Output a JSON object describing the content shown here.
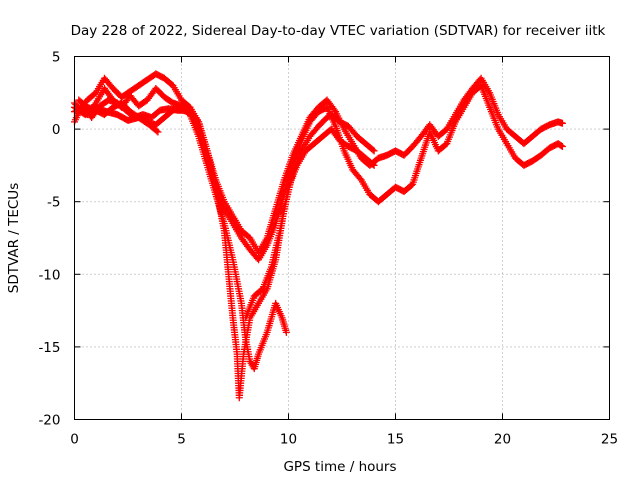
{
  "chart_data": {
    "type": "scatter",
    "title": "Day 228 of 2022, Sidereal Day-to-day VTEC variation (SDTVAR) for receiver iitk",
    "xlabel": "GPS time / hours",
    "ylabel": "SDTVAR / TECUs",
    "xlim": [
      0,
      25
    ],
    "ylim": [
      -20,
      5
    ],
    "x_ticks": [
      0,
      5,
      10,
      15,
      20,
      25
    ],
    "y_ticks": [
      5,
      0,
      -5,
      -10,
      -15,
      -20
    ],
    "grid": true,
    "legend": "none",
    "marker": "+",
    "color": "#ff0000",
    "series": [
      {
        "x": [
          0.0,
          0.3,
          0.6,
          1.0,
          1.4,
          1.8,
          2.2,
          2.6,
          3.0,
          3.4,
          3.8,
          4.2,
          4.6,
          5.0,
          5.4,
          5.8,
          6.2,
          6.6,
          7.0,
          7.4,
          7.8,
          8.2,
          8.6,
          9.0,
          9.4,
          9.8,
          10.2,
          10.6,
          11.0,
          11.4,
          11.8,
          12.2,
          12.6,
          13.0,
          13.4,
          13.8,
          14.2,
          14.6,
          15.0,
          15.4,
          15.8,
          16.2,
          16.6,
          17.0,
          17.4,
          17.8,
          18.2,
          18.6,
          19.0,
          19.4,
          19.8,
          20.2,
          20.6,
          21.0,
          21.4,
          21.8,
          22.2,
          22.6,
          22.8
        ],
        "y": [
          1.8,
          1.3,
          1.0,
          1.8,
          2.8,
          2.0,
          1.5,
          2.3,
          1.6,
          2.0,
          2.8,
          2.2,
          1.8,
          1.6,
          1.2,
          0.2,
          -2.0,
          -4.0,
          -5.5,
          -6.5,
          -7.5,
          -8.3,
          -9.0,
          -8.0,
          -6.5,
          -4.5,
          -2.5,
          -0.8,
          0.5,
          1.2,
          1.5,
          0.2,
          -1.5,
          -2.8,
          -3.5,
          -4.5,
          -5.0,
          -4.5,
          -4.0,
          -4.3,
          -3.8,
          -2.0,
          -0.2,
          -1.5,
          -1.0,
          0.5,
          1.5,
          2.5,
          3.0,
          1.5,
          0.0,
          -1.0,
          -2.0,
          -2.5,
          -2.2,
          -1.8,
          -1.3,
          -1.0,
          -1.2
        ]
      },
      {
        "x": [
          0.0,
          0.3,
          0.6,
          1.0,
          1.4,
          1.8,
          2.2,
          2.6,
          3.0,
          3.4,
          3.8,
          4.2,
          4.6,
          5.0,
          5.4,
          5.8,
          6.2,
          6.6,
          7.0,
          7.4,
          7.8,
          8.2,
          8.6,
          9.0,
          9.4,
          9.8,
          10.2,
          10.6,
          11.0,
          11.4,
          11.8,
          12.2,
          12.6,
          13.0,
          13.4,
          13.8,
          14.2,
          14.6,
          15.0,
          15.4,
          15.8,
          16.2,
          16.6,
          17.0,
          17.4,
          17.8,
          18.2,
          18.6,
          19.0,
          19.4,
          19.8,
          20.2,
          20.6,
          21.0,
          21.4,
          21.8,
          22.2,
          22.6,
          22.8
        ],
        "y": [
          0.5,
          1.5,
          2.0,
          2.5,
          3.5,
          2.8,
          2.2,
          2.6,
          3.0,
          3.4,
          3.8,
          3.5,
          3.0,
          2.0,
          1.5,
          0.5,
          -1.5,
          -3.5,
          -5.0,
          -6.0,
          -7.0,
          -7.5,
          -8.5,
          -7.5,
          -5.5,
          -3.5,
          -1.8,
          -0.5,
          0.8,
          1.5,
          2.0,
          1.2,
          0.0,
          -1.0,
          -2.0,
          -2.5,
          -2.0,
          -1.8,
          -1.5,
          -1.8,
          -1.2,
          -0.5,
          0.3,
          -0.5,
          0.0,
          1.0,
          2.0,
          2.8,
          3.5,
          2.5,
          1.0,
          0.0,
          -0.5,
          -1.0,
          -0.5,
          0.0,
          0.3,
          0.5,
          0.4
        ]
      },
      {
        "x": [
          0.0,
          0.4,
          0.8,
          1.2,
          1.6,
          2.0,
          2.4,
          2.8,
          3.2,
          3.6,
          4.0,
          4.4,
          4.8,
          5.0,
          5.4,
          5.8,
          6.2,
          6.6,
          7.0,
          7.2,
          7.4,
          7.6,
          7.7,
          7.9,
          8.2,
          8.6,
          9.0,
          9.4,
          9.8,
          10.2,
          10.6,
          11.0,
          11.4,
          11.8,
          12.0,
          12.4,
          12.8,
          13.2,
          13.6,
          14.0
        ],
        "y": [
          1.2,
          1.5,
          0.8,
          1.6,
          2.0,
          1.8,
          1.3,
          0.8,
          1.0,
          0.8,
          1.3,
          1.4,
          1.3,
          1.3,
          1.2,
          0.5,
          -1.5,
          -4.0,
          -7.0,
          -10.0,
          -13.0,
          -15.5,
          -18.5,
          -15.5,
          -13.0,
          -12.0,
          -11.0,
          -9.0,
          -5.5,
          -3.0,
          -1.5,
          -0.5,
          0.2,
          0.8,
          1.0,
          0.5,
          0.2,
          -0.5,
          -1.0,
          -1.5
        ]
      },
      {
        "x": [
          0.2,
          0.6,
          1.0,
          1.4,
          1.8,
          2.2,
          2.6,
          3.0,
          3.4,
          3.8,
          4.2,
          4.6,
          5.0,
          5.4,
          5.8,
          6.2,
          6.6,
          7.0,
          7.4,
          7.8,
          8.0,
          8.2,
          8.4,
          8.6,
          9.0,
          9.4,
          9.7,
          9.9
        ],
        "y": [
          2.0,
          1.5,
          1.3,
          1.0,
          1.5,
          1.8,
          1.2,
          0.8,
          0.5,
          0.3,
          0.8,
          1.3,
          1.5,
          1.0,
          -0.5,
          -2.5,
          -4.5,
          -6.5,
          -9.0,
          -12.0,
          -14.5,
          -16.0,
          -16.5,
          -15.5,
          -14.0,
          -12.0,
          -13.0,
          -14.0
        ]
      },
      {
        "x": [
          0.0,
          0.5,
          1.0,
          1.5,
          2.0,
          2.5,
          3.0,
          3.5,
          3.9
        ],
        "y": [
          1.5,
          1.0,
          1.5,
          1.2,
          1.0,
          0.6,
          0.8,
          0.3,
          -0.2
        ]
      },
      {
        "x": [
          8.0,
          8.4,
          8.8,
          9.2,
          9.6,
          10.0,
          10.4,
          10.8,
          11.2,
          11.6,
          12.0,
          12.4,
          12.8,
          13.2,
          13.6,
          14.0
        ],
        "y": [
          -13.0,
          -11.5,
          -11.0,
          -9.5,
          -7.0,
          -4.0,
          -2.5,
          -1.5,
          -1.0,
          -0.5,
          0.0,
          -0.8,
          -1.2,
          -1.5,
          -2.0,
          -2.5
        ]
      }
    ]
  }
}
